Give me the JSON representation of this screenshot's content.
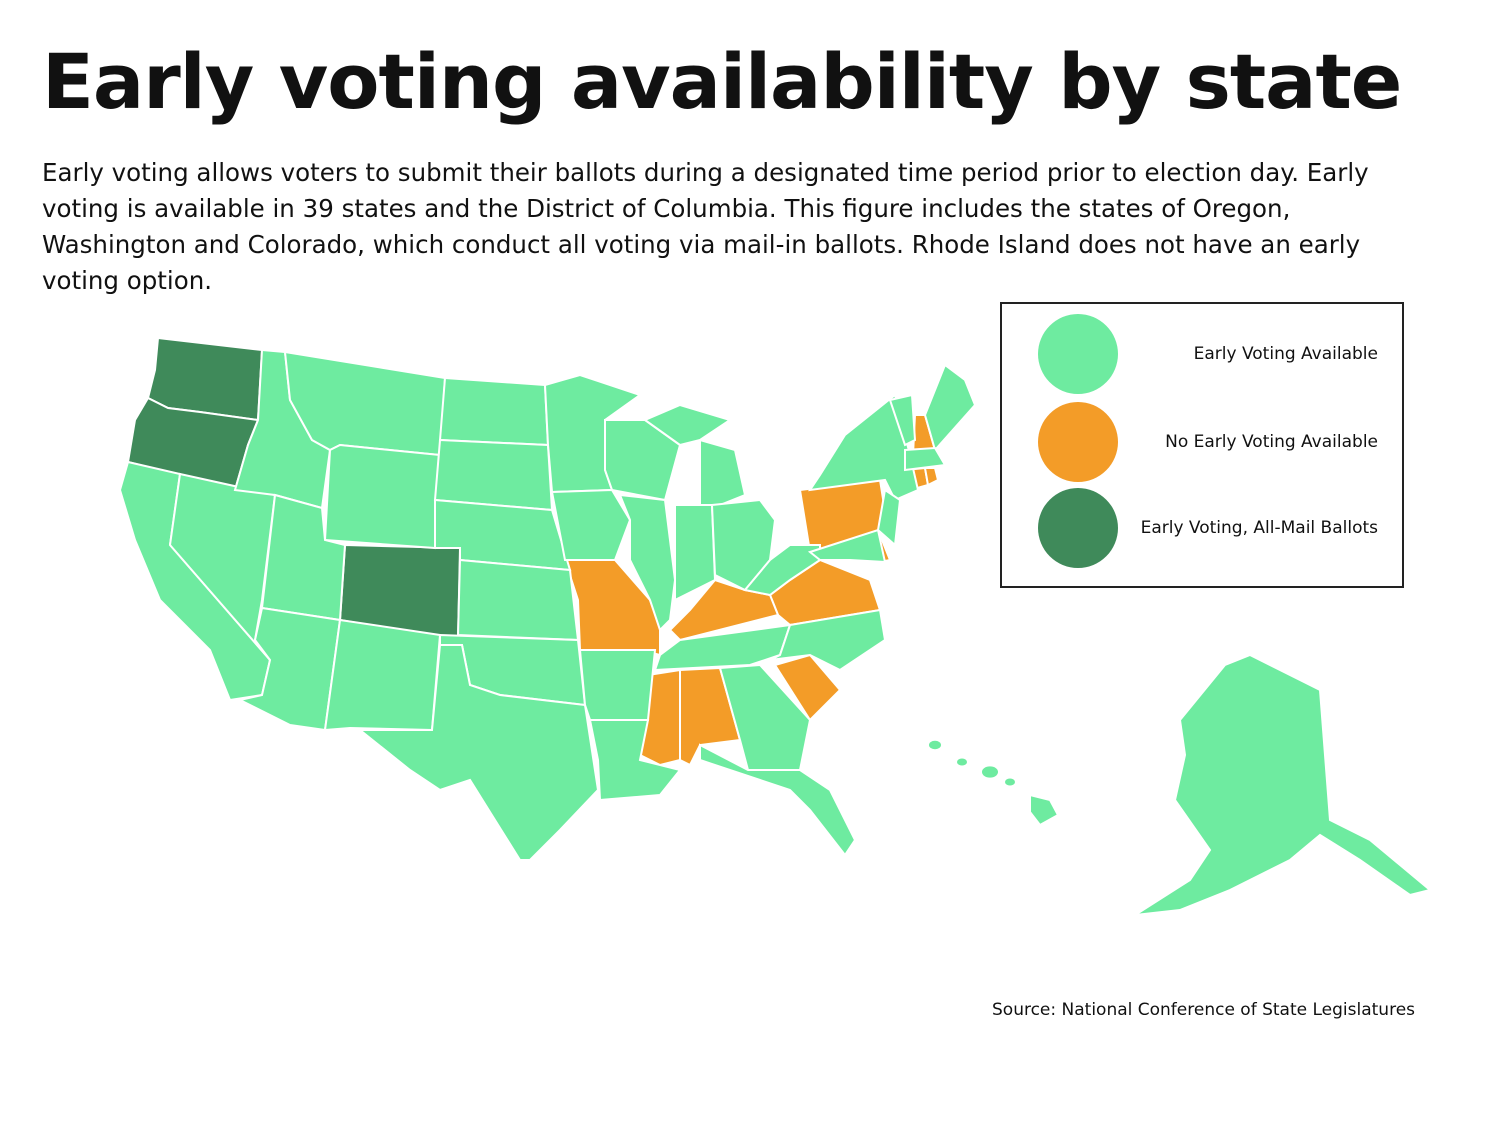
{
  "title": "Early voting availability by state",
  "subtitle": "Early voting allows voters to submit their ballots during a designated time period prior to election day. Early voting is available in 39 states and the District of Columbia. This figure includes the states of Oregon, Washington and Colorado, which conduct all voting via mail-in ballots. Rhode Island does not have an early voting option.",
  "legend": [
    {
      "key": "available",
      "label": "Early Voting Available",
      "color": "#6eeba0"
    },
    {
      "key": "none",
      "label": "No Early Voting Available",
      "color": "#f39c28"
    },
    {
      "key": "mail",
      "label": "Early Voting, All-Mail Ballots",
      "color": "#3f8a5a"
    }
  ],
  "source": "Source: National Conference of State Legislatures",
  "states": {
    "WA": "mail",
    "OR": "mail",
    "CO": "mail",
    "NH": "none",
    "CT": "none",
    "RI": "none",
    "PA": "none",
    "DE": "none",
    "VA": "none",
    "KY": "none",
    "MO": "none",
    "MS": "none",
    "AL": "none",
    "SC": "none",
    "CA": "available",
    "NV": "available",
    "ID": "available",
    "MT": "available",
    "WY": "available",
    "UT": "available",
    "AZ": "available",
    "NM": "available",
    "ND": "available",
    "SD": "available",
    "NE": "available",
    "KS": "available",
    "OK": "available",
    "TX": "available",
    "MN": "available",
    "IA": "available",
    "AR": "available",
    "LA": "available",
    "WI": "available",
    "IL": "available",
    "MI": "available",
    "MI2": "available",
    "IN": "available",
    "OH": "available",
    "TN": "available",
    "GA": "available",
    "FL": "available",
    "NC": "available",
    "WV": "available",
    "NY": "available",
    "NJ": "available",
    "MD": "available",
    "VT": "available",
    "ME": "available",
    "MA": "available",
    "AK": "available",
    "HI": "available"
  }
}
